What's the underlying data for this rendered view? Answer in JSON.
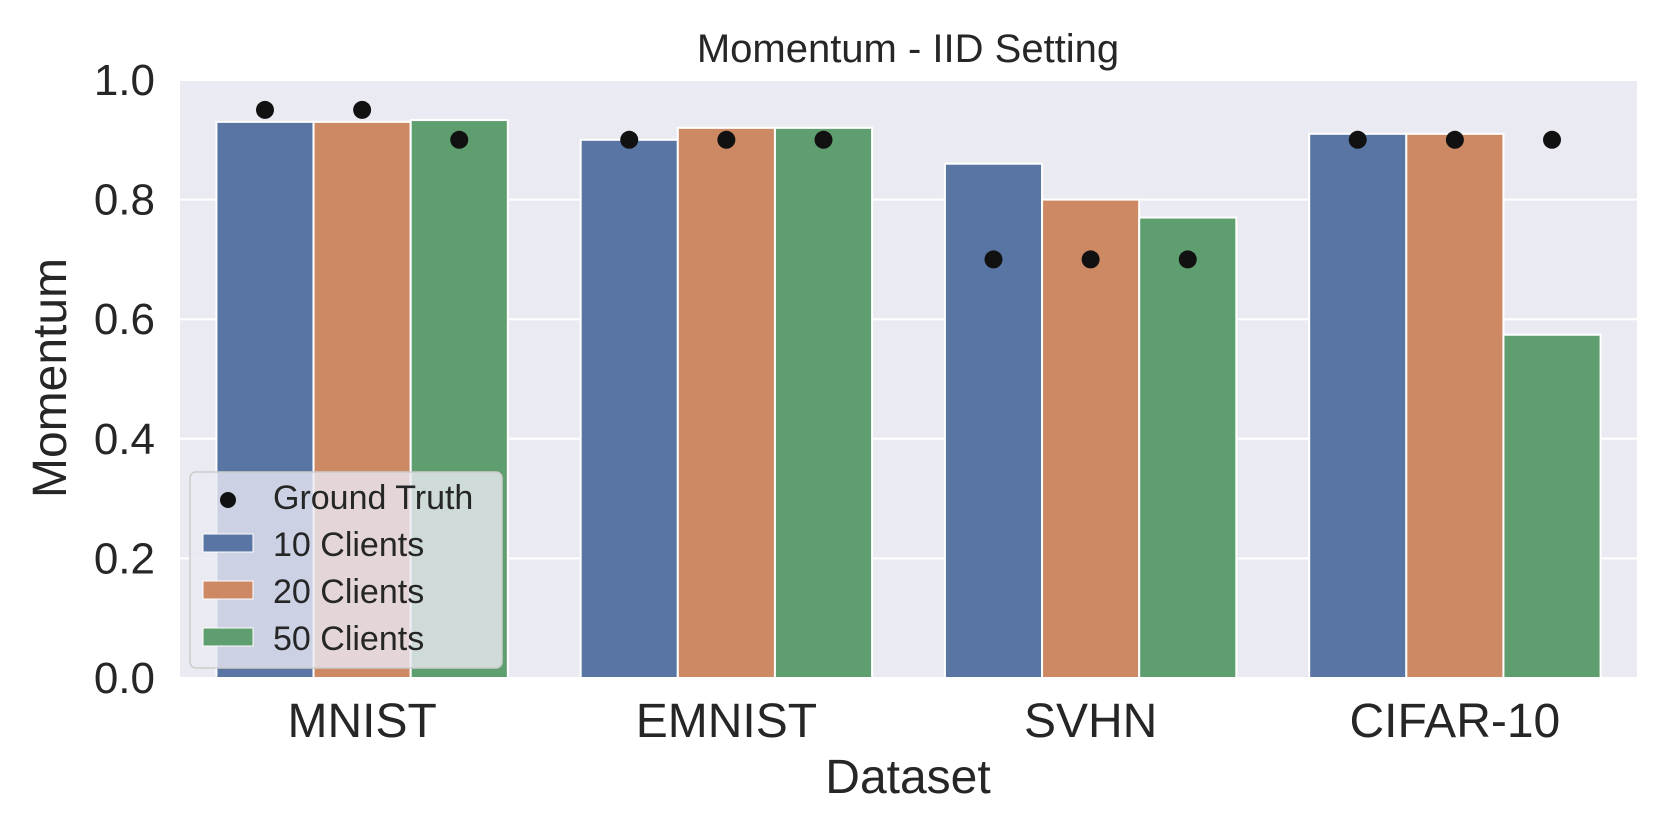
{
  "chart_data": {
    "type": "bar",
    "title": "Momentum - IID Setting",
    "xlabel": "Dataset",
    "ylabel": "Momentum",
    "ylim": [
      0.0,
      1.0
    ],
    "yticks": [
      "0.0",
      "0.2",
      "0.4",
      "0.6",
      "0.8",
      "1.0"
    ],
    "categories": [
      "MNIST",
      "EMNIST",
      "SVHN",
      "CIFAR-10"
    ],
    "series": [
      {
        "name": "10 Clients",
        "color": "#5875a4",
        "values": [
          0.93,
          0.9,
          0.86,
          0.91
        ]
      },
      {
        "name": "20 Clients",
        "color": "#cc8963",
        "values": [
          0.93,
          0.92,
          0.8,
          0.91
        ]
      },
      {
        "name": "50 Clients",
        "color": "#5f9e6e",
        "values": [
          0.933,
          0.92,
          0.77,
          0.574
        ]
      }
    ],
    "ground_truth": {
      "name": "Ground Truth",
      "color": "#111111",
      "values": [
        [
          0.95,
          0.95,
          0.9
        ],
        [
          0.9,
          0.9,
          0.9
        ],
        [
          0.7,
          0.7,
          0.7
        ],
        [
          0.9,
          0.9,
          0.9
        ]
      ]
    },
    "grid": true,
    "background": "#eaeaf2",
    "legend_position": "lower-left"
  }
}
